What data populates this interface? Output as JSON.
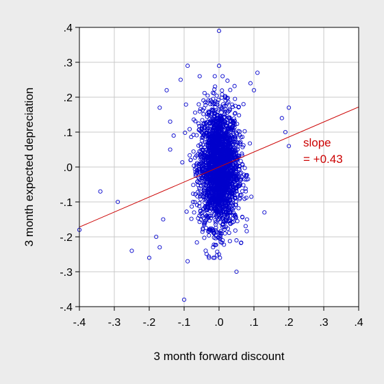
{
  "chart_data": {
    "type": "scatter",
    "title": "",
    "xlabel": "3 month forward discount",
    "ylabel": "3 month expected depreciation",
    "xlim": [
      -0.4,
      0.4
    ],
    "ylim": [
      -0.4,
      0.4
    ],
    "x_ticks": [
      -0.4,
      -0.3,
      -0.2,
      -0.1,
      0.0,
      0.1,
      0.2,
      0.3,
      0.4
    ],
    "y_ticks": [
      -0.4,
      -0.3,
      -0.2,
      -0.1,
      0.0,
      0.1,
      0.2,
      0.3,
      0.4
    ],
    "x_tick_labels": [
      "-.4",
      "-.3",
      "-.2",
      "-.1",
      ".0",
      ".1",
      ".2",
      ".3",
      ".4"
    ],
    "y_tick_labels": [
      "-.4",
      "-.3",
      "-.2",
      "-.1",
      ".0",
      ".1",
      ".2",
      ".3",
      ".4"
    ],
    "grid": true,
    "marker_color": "#0000cc",
    "fit_line_color": "#cc0000",
    "fit_line": {
      "slope": 0.43,
      "intercept": 0.0
    },
    "annotation": [
      "slope",
      "= +0.43"
    ],
    "cluster": {
      "n_points": 2500,
      "x_center": 0.0,
      "x_spread": 0.028,
      "y_center": 0.0,
      "y_spread": 0.085
    },
    "outliers": [
      [
        0.0,
        0.39
      ],
      [
        -0.09,
        0.29
      ],
      [
        0.0,
        0.29
      ],
      [
        0.11,
        0.27
      ],
      [
        -0.11,
        0.25
      ],
      [
        0.09,
        0.24
      ],
      [
        0.1,
        0.22
      ],
      [
        -0.15,
        0.22
      ],
      [
        0.2,
        0.17
      ],
      [
        -0.17,
        0.17
      ],
      [
        0.18,
        0.14
      ],
      [
        0.19,
        0.1
      ],
      [
        -0.14,
        0.13
      ],
      [
        0.2,
        0.06
      ],
      [
        -0.13,
        0.09
      ],
      [
        -0.14,
        0.05
      ],
      [
        -0.34,
        -0.07
      ],
      [
        -0.29,
        -0.1
      ],
      [
        -0.25,
        -0.24
      ],
      [
        -0.2,
        -0.26
      ],
      [
        -0.4,
        -0.18
      ],
      [
        -0.18,
        -0.2
      ],
      [
        0.13,
        -0.13
      ],
      [
        0.05,
        -0.3
      ],
      [
        -0.1,
        -0.38
      ],
      [
        -0.09,
        -0.27
      ],
      [
        0.0,
        -0.25
      ],
      [
        -0.17,
        -0.23
      ],
      [
        0.05,
        -0.21
      ],
      [
        0.08,
        -0.15
      ],
      [
        -0.16,
        -0.15
      ],
      [
        0.07,
        0.18
      ]
    ]
  }
}
